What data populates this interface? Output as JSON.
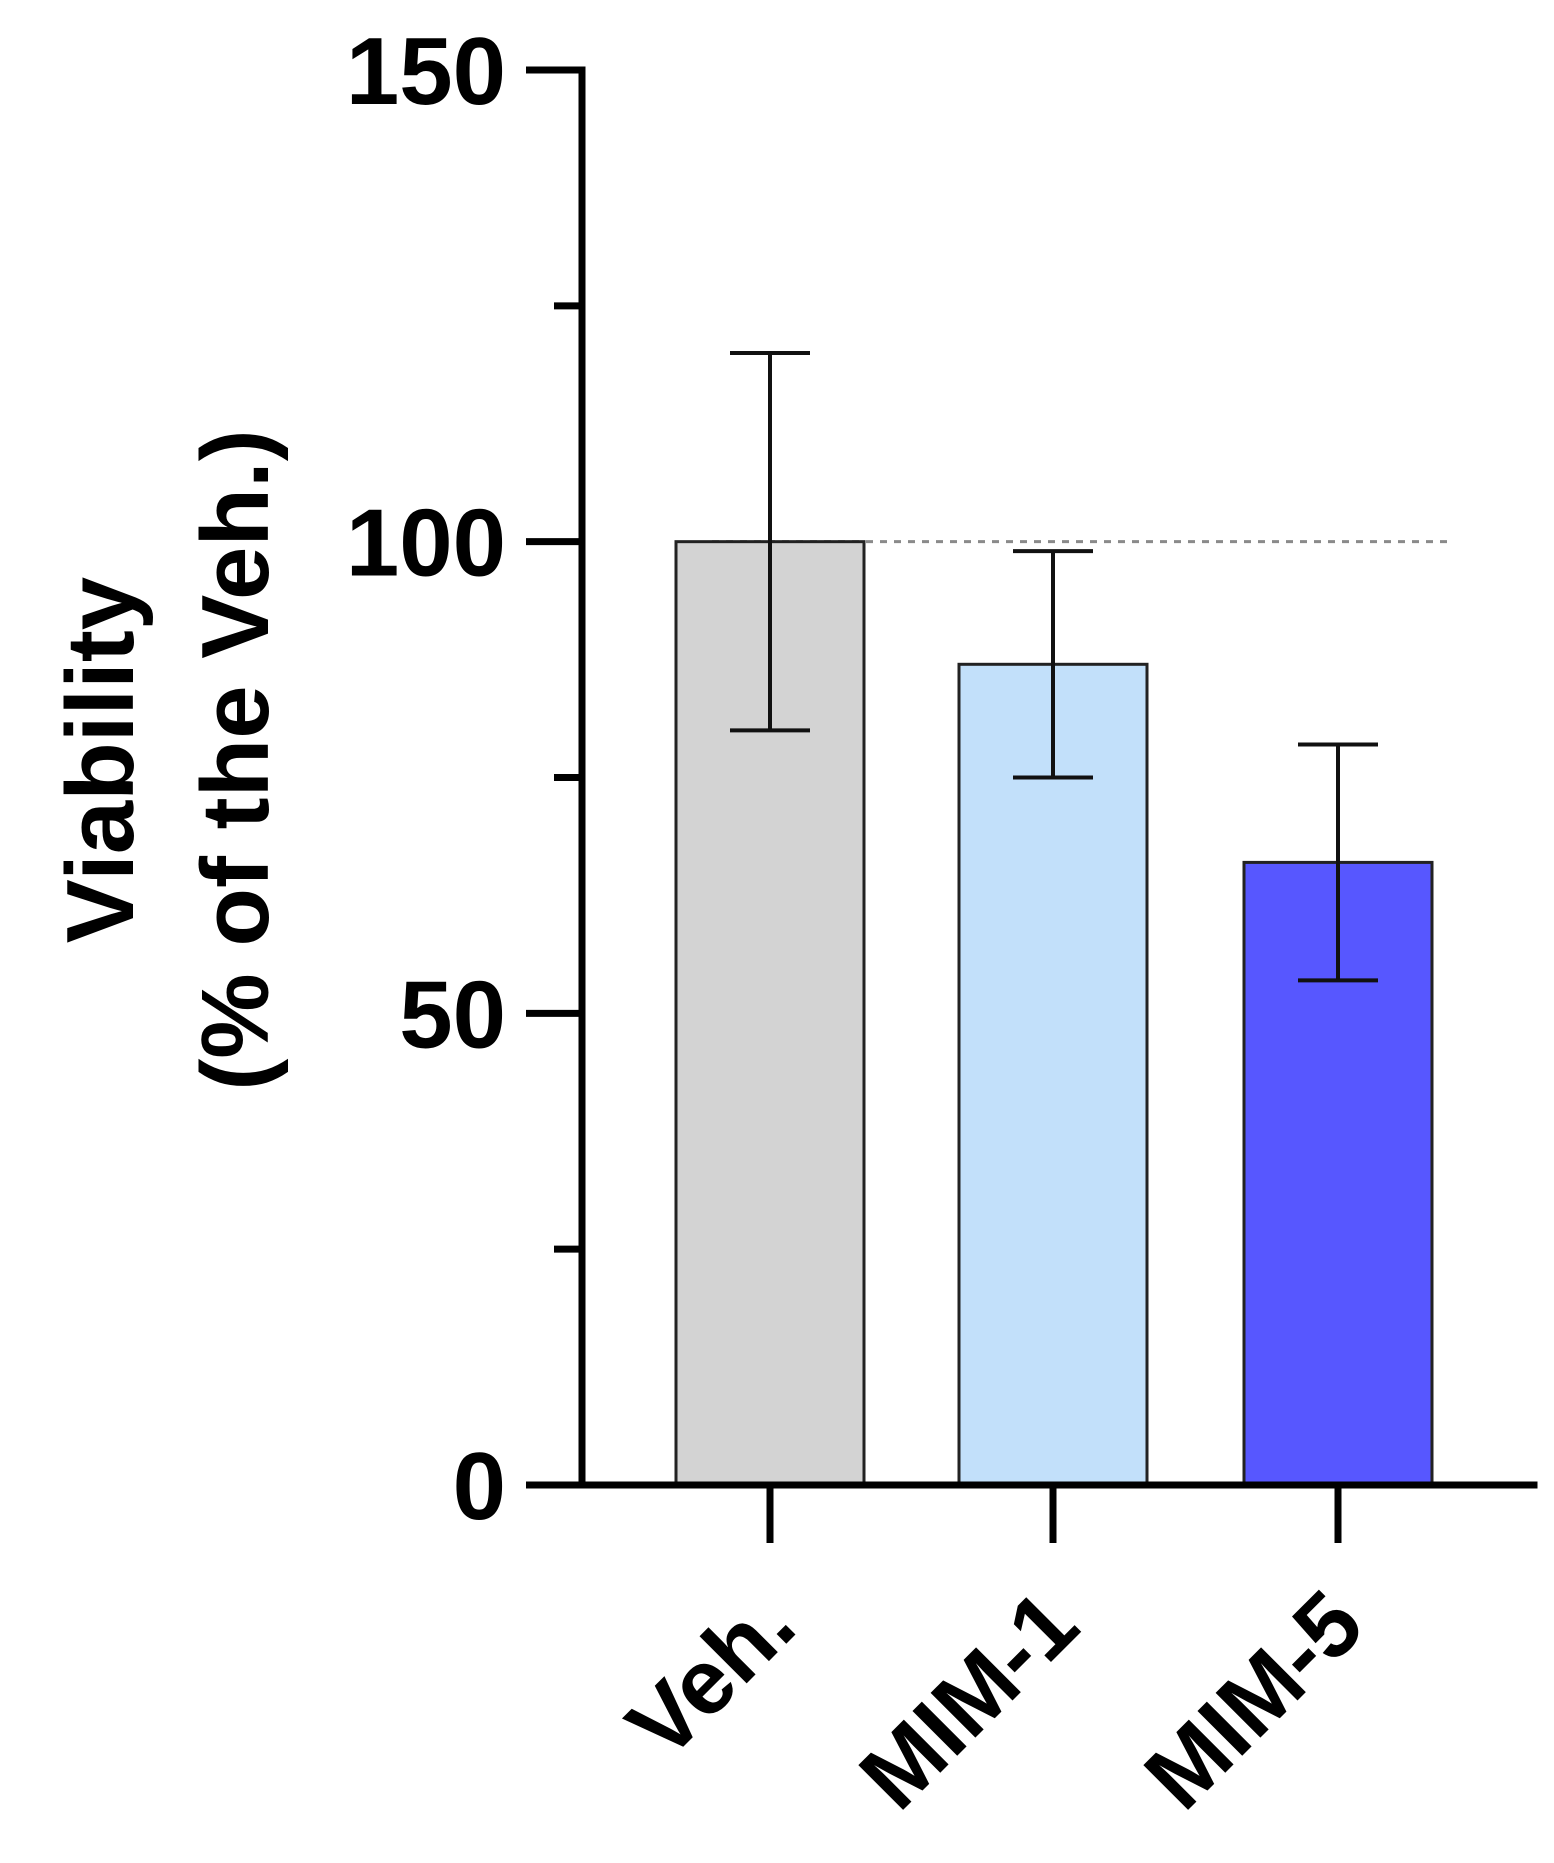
{
  "chart_data": {
    "type": "bar",
    "title": "",
    "xlabel": "",
    "ylabel": "Viability",
    "ylabel_sub": "(% of the Veh.)",
    "categories": [
      "Veh.",
      "MIM-1",
      "MIM-5"
    ],
    "values": [
      100,
      87,
      66
    ],
    "error": [
      20,
      12,
      12.5
    ],
    "colors": [
      "#d3d3d3",
      "#c2e0fa",
      "#5757ff"
    ],
    "ylim": [
      0,
      150
    ],
    "major_ticks": [
      0,
      50,
      100,
      150
    ],
    "minor_ticks": [
      25,
      75,
      125
    ],
    "tick_labels": [
      "0",
      "50",
      "100",
      "150"
    ],
    "reference_line": 100,
    "grid": false
  }
}
